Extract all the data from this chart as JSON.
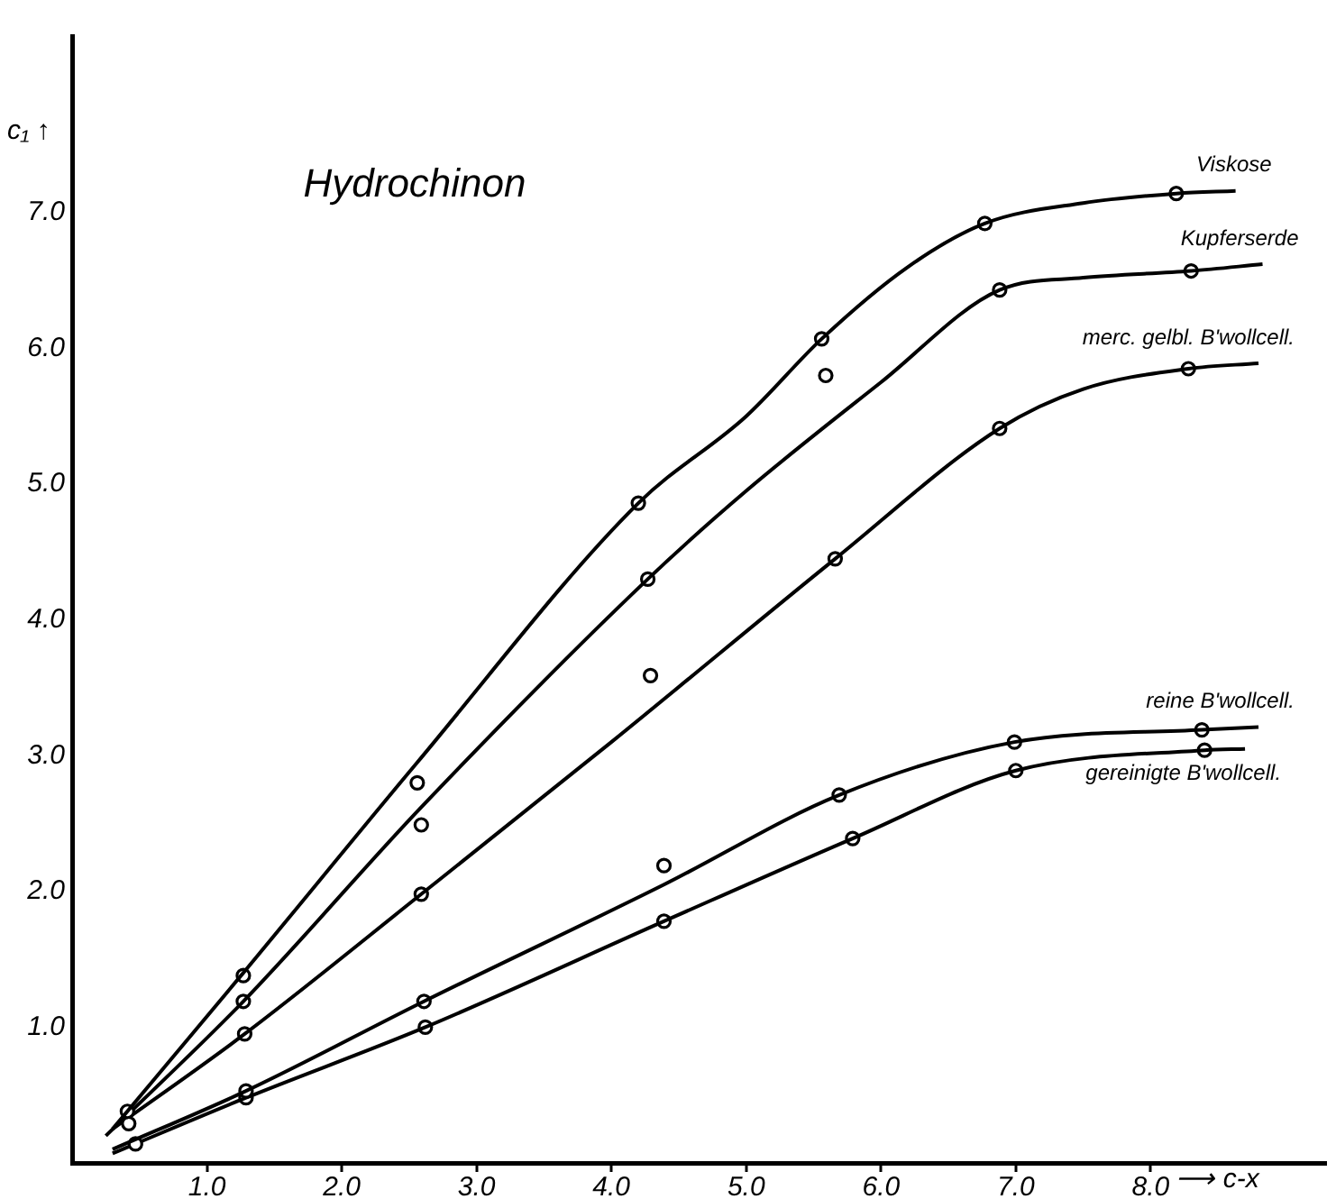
{
  "chart_data": {
    "type": "line",
    "title": "Hydrochinon",
    "xlabel": "⟶ c-x",
    "ylabel": "c₁ ↑",
    "xlim": [
      0,
      9.3
    ],
    "ylim": [
      0,
      8.3
    ],
    "xticks": [
      {
        "value": 1,
        "label": "1.0"
      },
      {
        "value": 2,
        "label": "2.0"
      },
      {
        "value": 3,
        "label": "3.0"
      },
      {
        "value": 4,
        "label": "4.0"
      },
      {
        "value": 5,
        "label": "5.0"
      },
      {
        "value": 6,
        "label": "6.0"
      },
      {
        "value": 7,
        "label": "7.0"
      },
      {
        "value": 8,
        "label": "8.0"
      }
    ],
    "yticks": [
      {
        "value": 1,
        "label": "1.0"
      },
      {
        "value": 2,
        "label": "2.0"
      },
      {
        "value": 3,
        "label": "3.0"
      },
      {
        "value": 4,
        "label": "4.0"
      },
      {
        "value": 5,
        "label": "5.0"
      },
      {
        "value": 6,
        "label": "6.0"
      },
      {
        "value": 7,
        "label": "7.0"
      }
    ],
    "grid": false,
    "legend": false,
    "line_style": "solid",
    "series": [
      {
        "name": "Viskose",
        "type": "line",
        "marker": "none",
        "color": "#000000",
        "x": [
          0.3,
          1.27,
          2.56,
          4.2,
          5.0,
          5.56,
          6.2,
          6.77,
          7.5,
          8.19,
          8.63
        ],
        "values": [
          0.25,
          1.4,
          2.95,
          4.86,
          5.5,
          6.07,
          6.6,
          6.92,
          7.07,
          7.14,
          7.16
        ]
      },
      {
        "type": "scatter",
        "marker": "circle",
        "color": "#000000",
        "x": [
          0.41,
          1.27,
          2.56,
          4.2,
          5.56,
          6.77,
          8.19
        ],
        "values": [
          0.38,
          1.38,
          2.8,
          4.86,
          6.07,
          6.92,
          7.14
        ]
      },
      {
        "name": "Kupferserde",
        "type": "line",
        "marker": "none",
        "color": "#000000",
        "x": [
          0.25,
          1.27,
          2.59,
          4.27,
          5.0,
          6.0,
          6.88,
          7.5,
          8.3,
          8.83
        ],
        "values": [
          0.2,
          1.19,
          2.62,
          4.3,
          4.95,
          5.75,
          6.43,
          6.52,
          6.57,
          6.62
        ]
      },
      {
        "type": "scatter",
        "marker": "circle",
        "color": "#000000",
        "x": [
          0.42,
          1.27,
          2.59,
          4.27,
          5.59,
          6.88,
          8.3
        ],
        "values": [
          0.29,
          1.19,
          2.49,
          4.3,
          5.8,
          6.43,
          6.57
        ]
      },
      {
        "name": "merc. gelbl. B'wollcell.",
        "type": "line",
        "marker": "none",
        "color": "#000000",
        "x": [
          0.3,
          1.28,
          2.59,
          4.0,
          5.66,
          6.88,
          7.5,
          8.28,
          8.8
        ],
        "values": [
          0.25,
          0.95,
          1.98,
          3.1,
          4.45,
          5.41,
          5.7,
          5.85,
          5.89
        ]
      },
      {
        "type": "scatter",
        "marker": "circle",
        "color": "#000000",
        "x": [
          1.28,
          2.59,
          4.29,
          5.66,
          6.88,
          8.28
        ],
        "values": [
          0.95,
          1.98,
          3.59,
          4.45,
          5.41,
          5.85
        ]
      },
      {
        "name": "reine B'wollcell.",
        "type": "line",
        "marker": "none",
        "color": "#000000",
        "x": [
          0.3,
          1.29,
          2.61,
          4.39,
          5.69,
          6.99,
          8.38,
          8.8
        ],
        "values": [
          0.1,
          0.53,
          1.19,
          2.05,
          2.71,
          3.1,
          3.19,
          3.21
        ]
      },
      {
        "type": "scatter",
        "marker": "circle",
        "color": "#000000",
        "x": [
          0.47,
          1.29,
          2.61,
          4.39,
          5.69,
          6.99,
          8.38
        ],
        "values": [
          0.14,
          0.53,
          1.19,
          2.19,
          2.71,
          3.1,
          3.19
        ]
      },
      {
        "name": "gereinigte B'wollcell.",
        "type": "line",
        "marker": "none",
        "color": "#000000",
        "x": [
          0.3,
          1.29,
          2.62,
          4.39,
          5.79,
          7.0,
          8.4,
          8.7
        ],
        "values": [
          0.07,
          0.48,
          1.0,
          1.78,
          2.39,
          2.89,
          3.04,
          3.05
        ]
      },
      {
        "type": "scatter",
        "marker": "circle",
        "color": "#000000",
        "x": [
          1.29,
          2.62,
          4.39,
          5.79,
          7.0,
          8.4
        ],
        "values": [
          0.48,
          1.0,
          1.78,
          2.39,
          2.89,
          3.04
        ]
      }
    ]
  }
}
